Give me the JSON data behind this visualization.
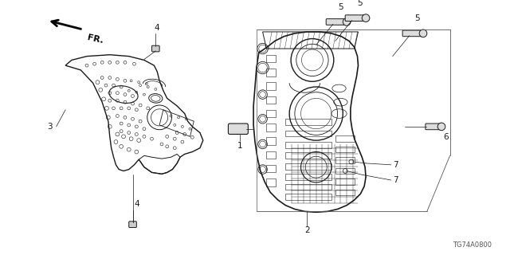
{
  "bg_color": "#ffffff",
  "line_color": "#1a1a1a",
  "label_color": "#000000",
  "diagram_code": "TG74A0800",
  "figsize": [
    6.4,
    3.2
  ],
  "dpi": 100
}
